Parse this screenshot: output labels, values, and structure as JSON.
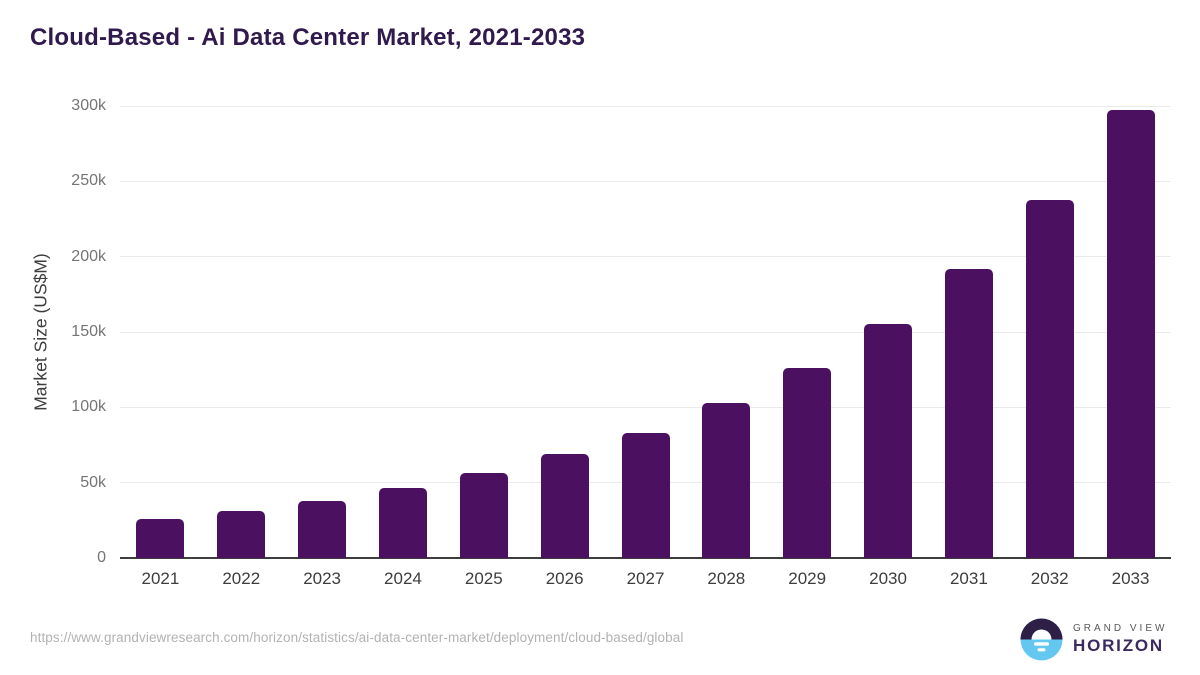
{
  "title": "Cloud-Based - Ai Data Center Market, 2021-2033",
  "chart_data": {
    "type": "bar",
    "title": "Cloud-Based - Ai Data Center Market, 2021-2033",
    "categories": [
      "2021",
      "2022",
      "2023",
      "2024",
      "2025",
      "2026",
      "2027",
      "2028",
      "2029",
      "2030",
      "2031",
      "2032",
      "2033"
    ],
    "values": [
      25900,
      31300,
      37800,
      46200,
      56700,
      69100,
      83200,
      102900,
      126200,
      155500,
      192000,
      237500,
      297300
    ],
    "xlabel": "",
    "ylabel": "Market Size (US$M)",
    "ylim": [
      0,
      300000
    ],
    "yticks": [
      {
        "value": 0,
        "label": "0"
      },
      {
        "value": 50000,
        "label": "50k"
      },
      {
        "value": 100000,
        "label": "100k"
      },
      {
        "value": 150000,
        "label": "150k"
      },
      {
        "value": 200000,
        "label": "200k"
      },
      {
        "value": 250000,
        "label": "250k"
      },
      {
        "value": 300000,
        "label": "300k"
      }
    ],
    "grid": true,
    "legend": false,
    "bar_color": "#4b1060"
  },
  "footer": {
    "source_url": "https://www.grandviewresearch.com/horizon/statistics/ai-data-center-market/deployment/cloud-based/global",
    "brand": {
      "line1": "GRAND VIEW",
      "line2": "HORIZON",
      "logo_icon": "sunrise-horizon-circle-icon"
    }
  },
  "colors": {
    "title_text": "#301a4d",
    "bar": "#4b1060",
    "axis_line": "#3d3d3d",
    "gridline": "#eaeaea",
    "ytick_text": "#757575",
    "xtick_text": "#3d3d3d",
    "ylabel_text": "#3d3d3d",
    "url_text": "#b2b2b2",
    "logo_purple": "#2e1f47",
    "logo_blue": "#64c7f0",
    "brand_gray": "#595959",
    "brand_purple": "#3a2a5f"
  }
}
